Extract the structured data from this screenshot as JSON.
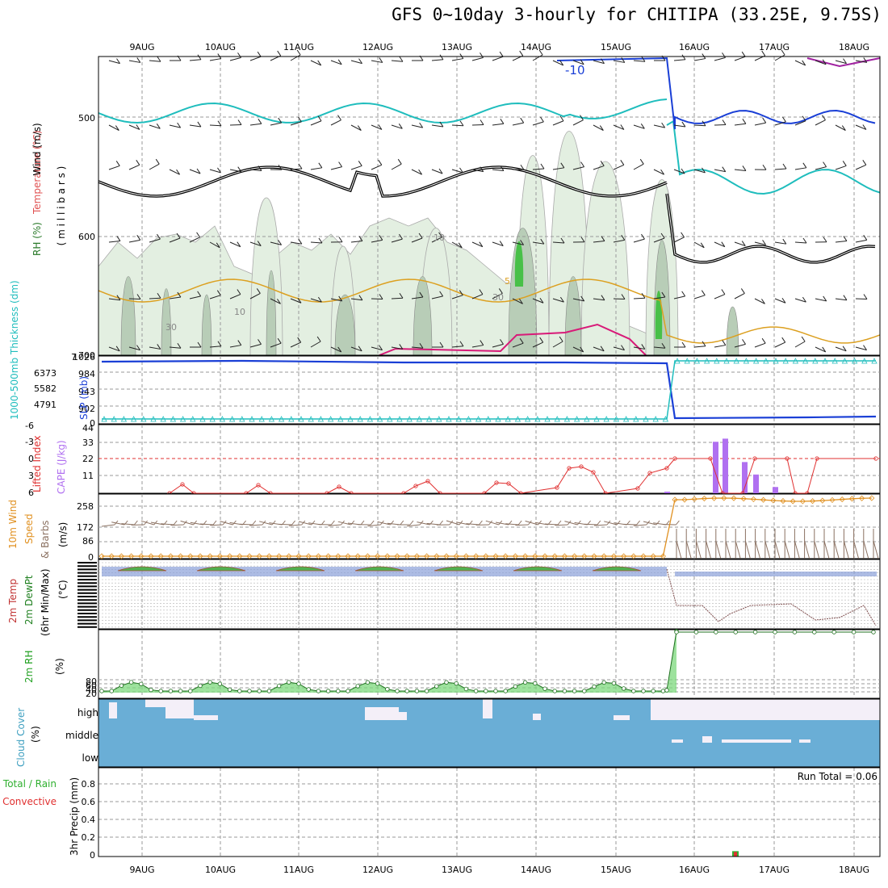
{
  "title": "GFS 0~10day 3-hourly for CHITIPA (33.25E, 9.75S)",
  "date_labels": [
    "9AUG",
    "10AUG",
    "11AUG",
    "12AUG",
    "13AUG",
    "14AUG",
    "15AUG",
    "16AUG",
    "17AUG",
    "18AUG"
  ],
  "panels": {
    "upper": {
      "label_wind": "Wind (m/s)",
      "label_temp": "Temperature (°C)",
      "label_rh": "RH (%)",
      "label_mb": "( m i l l i b a r s )",
      "pressure_ticks": [
        "500",
        "600",
        "700"
      ],
      "contour_labels": [
        "-10",
        "10",
        "10",
        "30",
        "30",
        "5"
      ]
    },
    "slp": {
      "label_thick": "1000-500mb Thickness (dm)",
      "label_slp": "SLP (mb)",
      "left_ticks": [
        "6373",
        "5582",
        "4791"
      ],
      "right_ticks": [
        "984",
        "943",
        "902"
      ],
      "corner_top": "1026",
      "corner_bottom": "0",
      "top_extra": "7"
    },
    "cape": {
      "label_li": "Lifted Index",
      "label_cape": "CAPE (J/kg)",
      "li_ticks": [
        "-6",
        "-3",
        "0",
        "3",
        "6"
      ],
      "cape_ticks": [
        "44",
        "33",
        "22",
        "11"
      ]
    },
    "wind10": {
      "label_1": "10m Wind",
      "label_2": "Speed",
      "label_3": "& Barbs",
      "units": "(m/s)",
      "ticks": [
        "258",
        "172",
        "86",
        "0"
      ]
    },
    "temp2m": {
      "label_1": "2m Temp",
      "label_2": "2m DewPt",
      "label_3": "(6hr Min/Max)",
      "units": "(°C)"
    },
    "rh2m": {
      "label": "2m RH",
      "units": "(%)",
      "ticks": [
        "80",
        "60",
        "40",
        "20"
      ]
    },
    "cloud": {
      "label": "Cloud Cover",
      "units": "(%)",
      "levels": [
        "high",
        "middle",
        "low"
      ]
    },
    "precip": {
      "label_1": "Total / Rain",
      "label_2": "Convective",
      "label_3": "3hr Precip (mm)",
      "ticks": [
        "0.8",
        "0.6",
        "0.4",
        "0.2",
        "0"
      ],
      "run_total": "Run Total = 0.06"
    }
  },
  "colors": {
    "grid": "#9a9a9a",
    "rh_fill_light": "#e3efe1",
    "rh_fill_mid": "#b8cdb7",
    "rh_fill_green": "#48c048",
    "temp_cyan": "#1fbdbd",
    "temp_blue": "#1a3fd6",
    "temp_black": "#000000",
    "temp_orange": "#dca020",
    "temp_magenta": "#d81a78",
    "slp": "#1a3fd6",
    "thickness": "#1fbdbd",
    "li": "#e03030",
    "cape": "#b070f0",
    "wind_speed": "#e09020",
    "barbs": "#8a7060",
    "rh_green": "#20a020",
    "cloud": "#6aaed6",
    "rain": "#30b030",
    "convective": "#e03030"
  },
  "chart_data": [
    {
      "type": "line",
      "name": "upper-air cross-section",
      "x": [
        "9AUG",
        "10AUG",
        "11AUG",
        "12AUG",
        "13AUG",
        "14AUG",
        "15AUG",
        "16AUG",
        "17AUG",
        "18AUG"
      ],
      "ylabel": "millibars",
      "ylim": [
        700,
        450
      ],
      "series": [
        {
          "color": "cyan",
          "values": [
            515,
            520,
            518,
            515,
            512,
            508,
            505,
            560,
            540,
            550
          ]
        },
        {
          "color": "black",
          "values": [
            560,
            570,
            565,
            538,
            545,
            548,
            542,
            625,
            620,
            610
          ]
        },
        {
          "color": "orange",
          "values": [
            640,
            665,
            655,
            650,
            655,
            665,
            665,
            690,
            678,
            690
          ]
        }
      ]
    },
    {
      "type": "line",
      "name": "SLP and thickness",
      "series": [
        {
          "color": "blue",
          "values": [
            1020,
            1020,
            1020,
            1020,
            1020,
            1020,
            1019,
            0,
            0,
            0
          ]
        },
        {
          "color": "cyan",
          "values": [
            0,
            0,
            0,
            0,
            0,
            0,
            0,
            1026,
            1026,
            1026
          ]
        }
      ]
    },
    {
      "type": "bar",
      "name": "CAPE",
      "categories": [
        "15AUG",
        "16AUG",
        "16AUG",
        "16AUG",
        "16AUG",
        "16AUG",
        "17AUG"
      ],
      "values": [
        1,
        33,
        35,
        20,
        12,
        4,
        1
      ],
      "ylim": [
        0,
        44
      ]
    },
    {
      "type": "line",
      "name": "Lifted Index",
      "x": [
        "9AUG",
        "10AUG",
        "11AUG",
        "12AUG",
        "13AUG",
        "14AUG",
        "15AUG",
        "16AUG",
        "17AUG",
        "18AUG"
      ],
      "values": [
        5,
        5,
        5,
        5,
        4,
        1,
        1,
        0,
        0,
        0
      ],
      "ylim": [
        6,
        -6
      ]
    },
    {
      "type": "line",
      "name": "10m Wind Speed",
      "x": [
        "9AUG",
        "10AUG",
        "11AUG",
        "12AUG",
        "13AUG",
        "14AUG",
        "15AUG",
        "16AUG",
        "17AUG",
        "18AUG"
      ],
      "values": [
        0,
        0,
        0,
        0,
        0,
        0,
        0,
        243,
        245,
        243
      ],
      "ylim": [
        0,
        300
      ]
    },
    {
      "type": "area",
      "name": "2m RH",
      "x": [
        "9AUG",
        "10AUG",
        "11AUG",
        "12AUG",
        "13AUG",
        "14AUG",
        "15AUG",
        "16AUG",
        "17AUG",
        "18AUG"
      ],
      "values": [
        28,
        28,
        28,
        28,
        28,
        28,
        28,
        100,
        100,
        100
      ],
      "ylim": [
        0,
        100
      ]
    },
    {
      "type": "bar",
      "name": "3hr Precip",
      "categories": [
        "16AUG"
      ],
      "values": [
        0.06
      ],
      "ylim": [
        0,
        0.95
      ]
    }
  ]
}
